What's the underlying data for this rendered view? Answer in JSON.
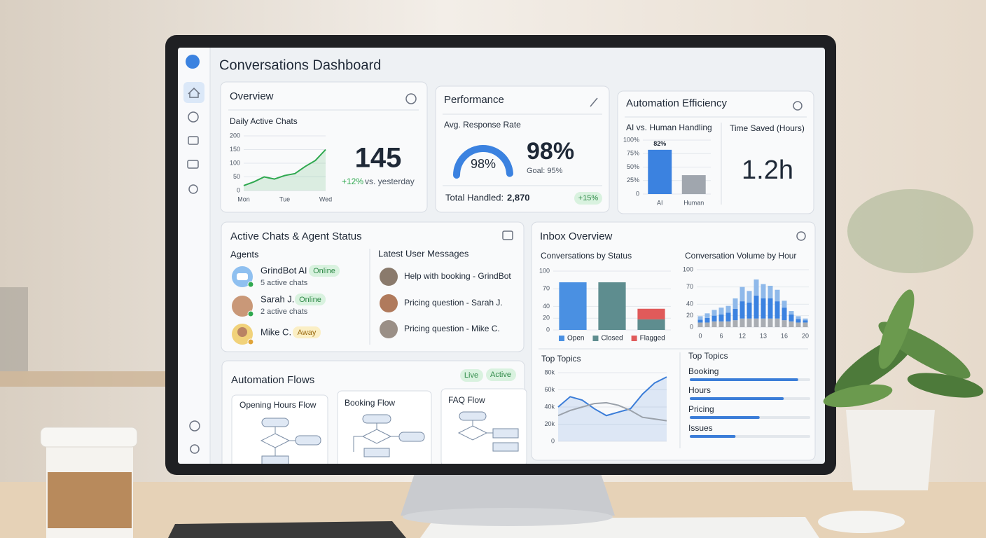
{
  "header": {
    "title": "Conversations Dashboard"
  },
  "overview": {
    "title": "Overview",
    "chart": {
      "type": "line",
      "title": "Daily Active Chats",
      "categories": [
        "Mon",
        null,
        null,
        null,
        "Tue",
        null,
        null,
        null,
        "Wed"
      ],
      "values": [
        18,
        32,
        50,
        42,
        55,
        62,
        88,
        110,
        150
      ],
      "color": "#2fa84f",
      "area": true,
      "ylim": [
        0,
        200
      ],
      "yticks": [
        0,
        50,
        100,
        150,
        200
      ],
      "grid": true
    },
    "stat": "145",
    "change": "+12%",
    "change_note": "vs. yesterday"
  },
  "performance": {
    "title": "Performance",
    "subtitle": "Avg. Response Rate",
    "gauge": {
      "type": "gauge",
      "value": 98,
      "value_label": "98%",
      "range": [
        0,
        100
      ],
      "color": "#3b82e0"
    },
    "goal": "Goal: 95%",
    "total_label": "Total Handled:",
    "total": "2,870",
    "change": "+15%"
  },
  "automation_efficiency": {
    "title": "Automation Efficiency",
    "chart": {
      "type": "bar",
      "title": "AI vs. Human Handling",
      "categories": [
        "AI",
        "Human"
      ],
      "values": [
        82,
        35
      ],
      "value_labels": [
        "82%",
        null
      ],
      "colors": [
        "#3b82e0",
        "#a0a6ae"
      ],
      "ylim": [
        0,
        100
      ],
      "yticks": [
        0,
        {
          "value": 25,
          "label": "25%"
        },
        {
          "value": 50,
          "label": "50%"
        },
        {
          "value": 75,
          "label": "75%"
        },
        {
          "value": 100,
          "label": "100%"
        }
      ],
      "grid": true
    },
    "time_saved_label": "Time Saved (Hours)",
    "time_saved": "1.2h"
  },
  "active_chats": {
    "title": "Active Chats & Agent Status",
    "agents_label": "Agents",
    "agents": [
      {
        "name": "GrindBot AI",
        "status": "Online",
        "detail": "5 active chats"
      },
      {
        "name": "Sarah J.",
        "status": "Online",
        "detail": "2 active chats"
      },
      {
        "name": "Mike C.",
        "status": "Away"
      }
    ],
    "messages_label": "Latest User Messages",
    "messages": [
      "Help with booking - GrindBot",
      "Pricing question - Sarah J.",
      "Pricing question - Mike C."
    ]
  },
  "automation_flows": {
    "title": "Automation Flows",
    "badges": [
      "Live",
      "Active"
    ],
    "flows": [
      "Opening Hours Flow",
      "Booking Flow",
      "FAQ Flow"
    ]
  },
  "inbox": {
    "title": "Inbox Overview",
    "status_chart": {
      "type": "stacked-bar",
      "title": "Conversations by Status",
      "categories": [
        null,
        null,
        null
      ],
      "series": [
        {
          "name": "Open",
          "color": "#4a90e2",
          "values": [
            81,
            0,
            0
          ]
        },
        {
          "name": "Closed",
          "color": "#5e8d8f",
          "values": [
            0,
            81,
            18
          ]
        },
        {
          "name": "Flagged",
          "color": "#e05a5a",
          "values": [
            0,
            0,
            18
          ]
        }
      ],
      "ylim": [
        0,
        100
      ],
      "yticks": [
        0,
        20,
        40,
        70,
        100
      ],
      "grid": true,
      "legend": "bottom"
    },
    "hourly_chart": {
      "type": "stacked-bar",
      "title": "Conversation Volume by Hour",
      "categories": [
        "0",
        null,
        null,
        "6",
        null,
        null,
        "12",
        null,
        null,
        "13",
        null,
        null,
        "16",
        null,
        null,
        "20"
      ],
      "series": [
        {
          "color": "#a9adb3",
          "values": [
            8,
            8,
            10,
            10,
            10,
            12,
            15,
            15,
            15,
            15,
            15,
            15,
            12,
            10,
            8,
            8
          ]
        },
        {
          "color": "#3b82e0",
          "values": [
            5,
            8,
            10,
            12,
            15,
            20,
            30,
            28,
            40,
            35,
            35,
            30,
            22,
            12,
            6,
            4
          ]
        },
        {
          "color": "#8fb9ea",
          "values": [
            6,
            8,
            10,
            12,
            12,
            18,
            25,
            20,
            28,
            25,
            22,
            20,
            12,
            6,
            5,
            3
          ]
        }
      ],
      "ylim": [
        0,
        100
      ],
      "yticks": [
        0,
        20,
        40,
        70,
        100
      ],
      "grid": true
    },
    "topics_chart": {
      "type": "line",
      "title": "Top Topics",
      "categories": [
        null,
        null,
        null,
        null,
        null,
        null,
        null,
        null,
        null,
        null
      ],
      "series": [
        {
          "color": "#3b7dd8",
          "values": [
            40000,
            52000,
            48000,
            38000,
            30000,
            34000,
            38000,
            55000,
            68000,
            75000
          ]
        },
        {
          "color": "#9aa1aa",
          "values": [
            30000,
            36000,
            40000,
            44000,
            45000,
            42000,
            36000,
            28000,
            26000,
            24000
          ]
        }
      ],
      "area": true,
      "ylim": [
        0,
        80000
      ],
      "yticks": [
        0,
        {
          "value": 20000,
          "label": "20k"
        },
        {
          "value": 40000,
          "label": "40k"
        },
        {
          "value": 60000,
          "label": "60k"
        },
        {
          "value": 80000,
          "label": "80k"
        }
      ],
      "grid": true
    },
    "topics_list": {
      "type": "progress",
      "title": "Top Topics",
      "categories": [
        "Booking",
        "Hours",
        "Pricing",
        "Issues"
      ],
      "values": [
        90,
        78,
        58,
        38
      ],
      "range": [
        0,
        100
      ],
      "color": "#3b7dd8"
    }
  }
}
